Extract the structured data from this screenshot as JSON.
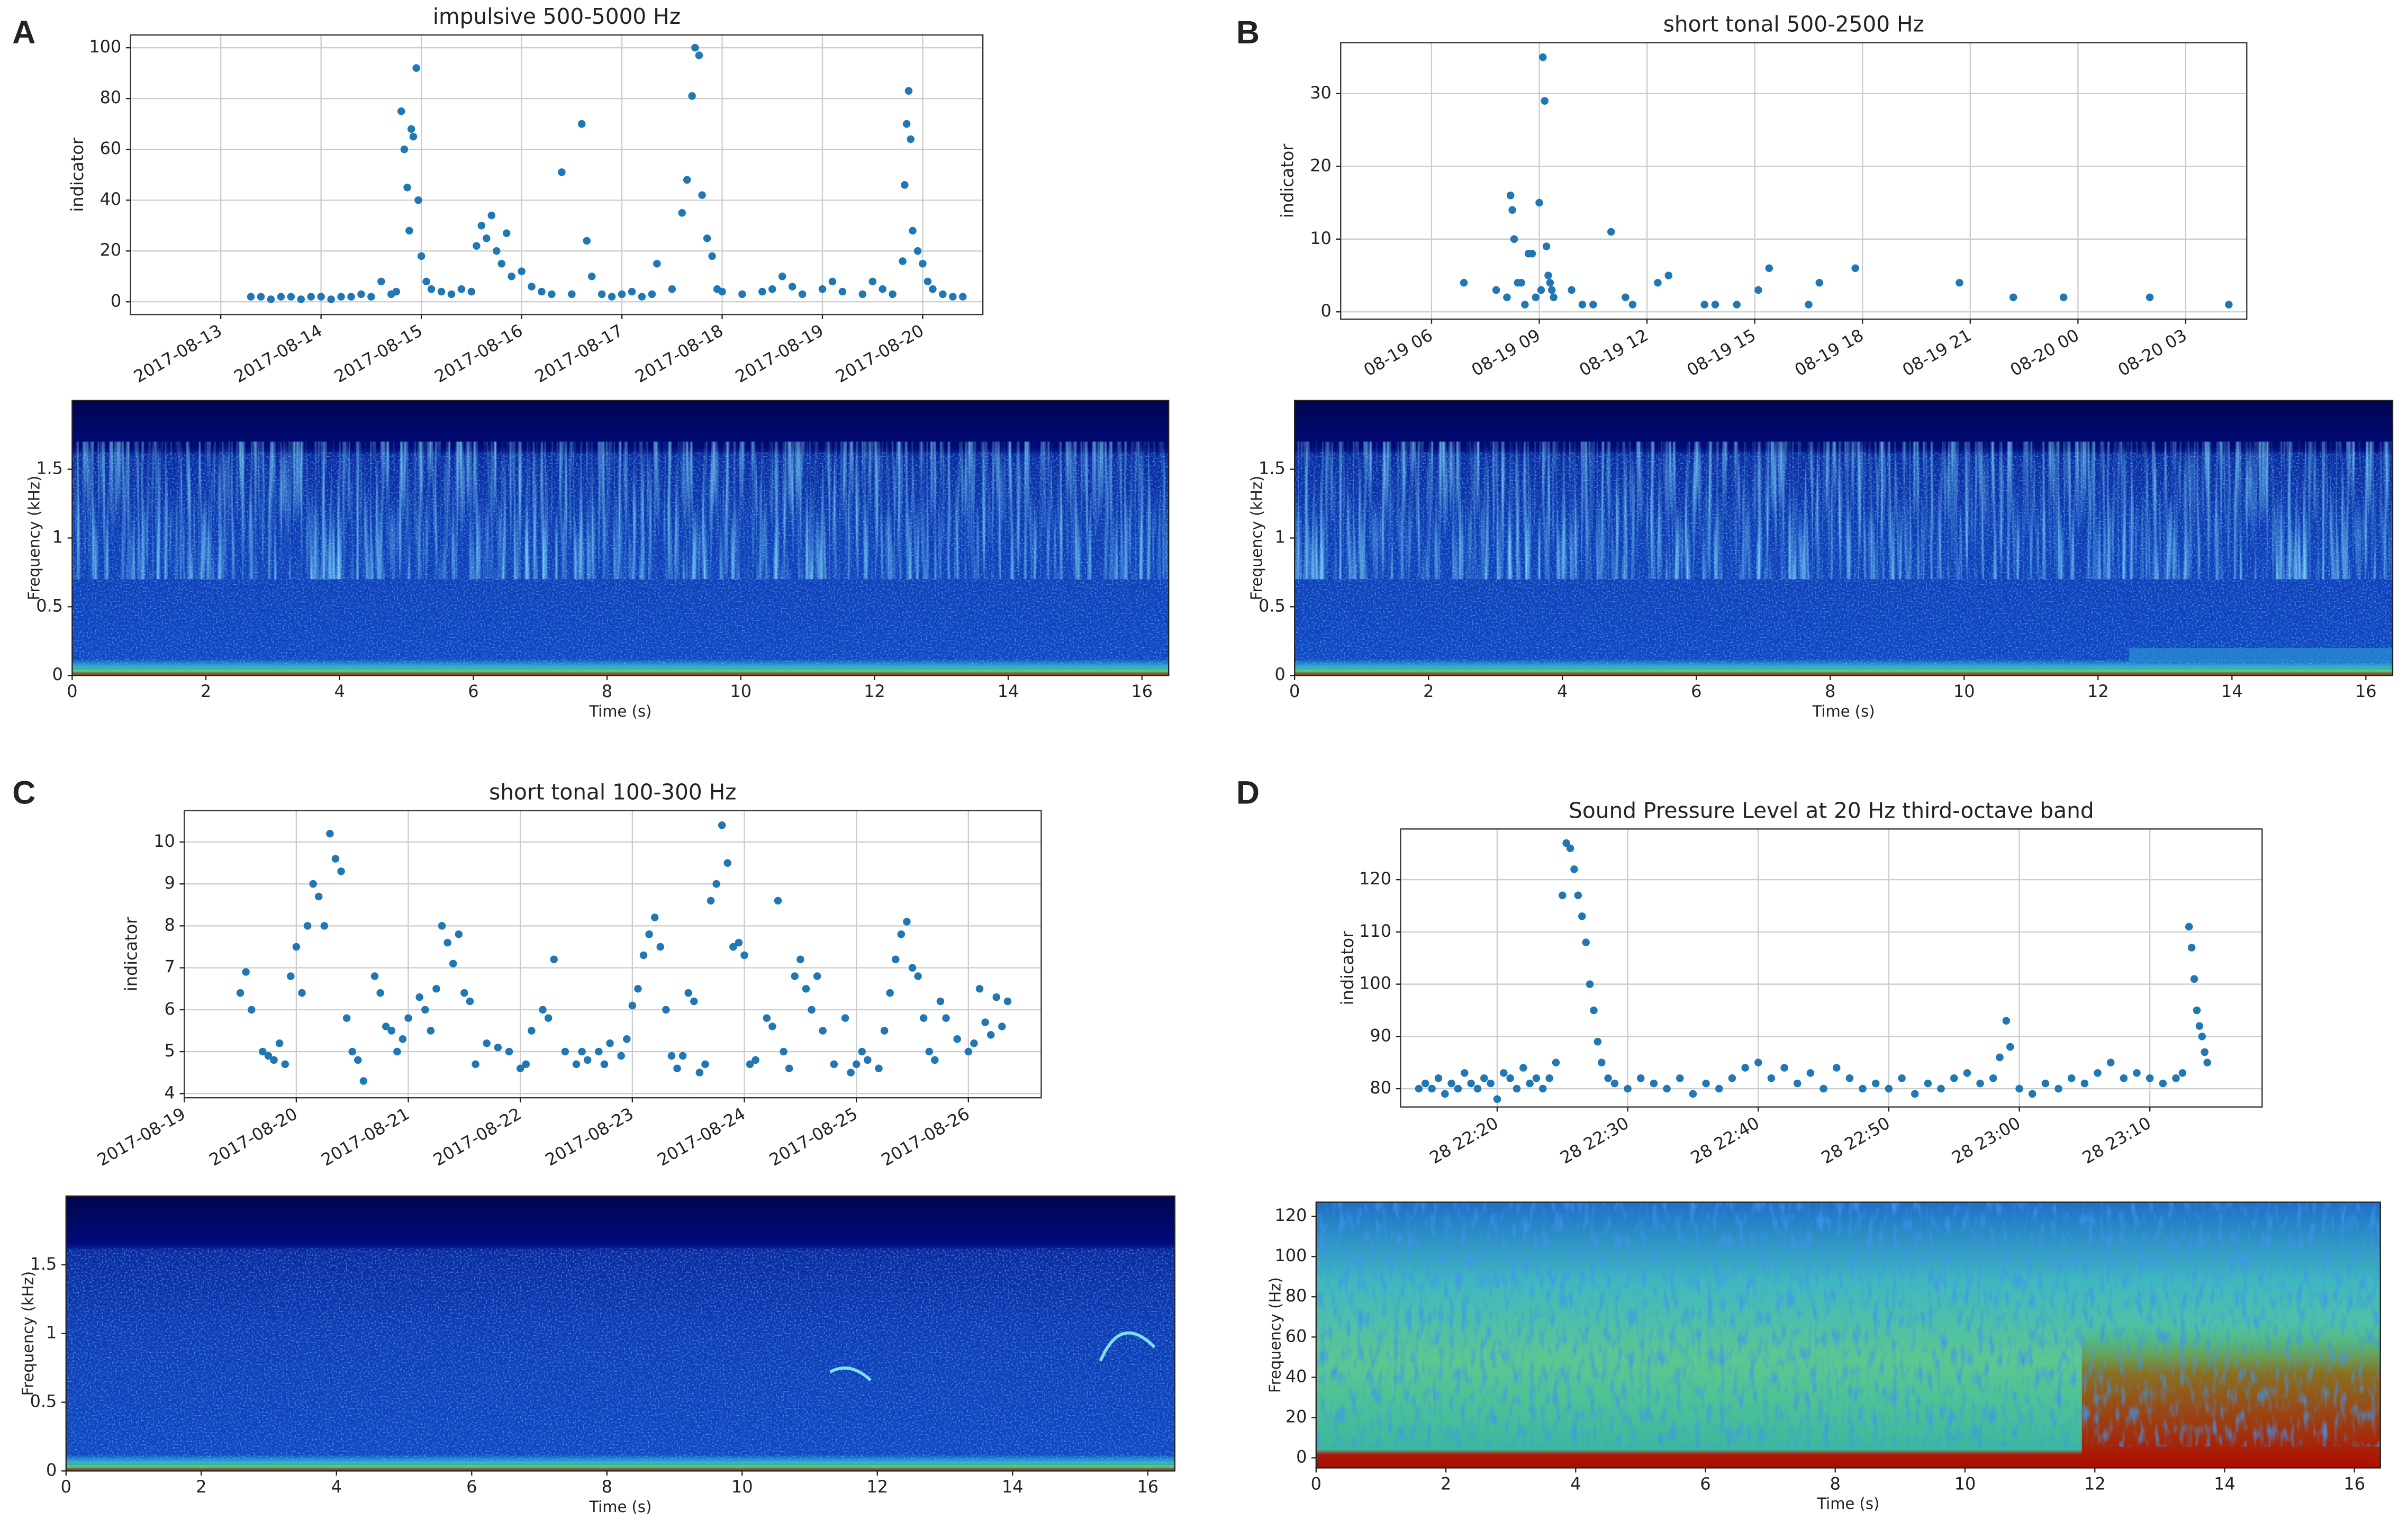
{
  "chart_data": [
    {
      "type": "scatter",
      "panel_label": "A",
      "title": "impulsive 500-5000 Hz",
      "ylabel": "indicator",
      "color": "#1f77b4",
      "grid": true,
      "xlim": [
        12.1,
        20.6
      ],
      "xticks": [
        {
          "value": 13,
          "label": "2017-08-13"
        },
        {
          "value": 14,
          "label": "2017-08-14"
        },
        {
          "value": 15,
          "label": "2017-08-15"
        },
        {
          "value": 16,
          "label": "2017-08-16"
        },
        {
          "value": 17,
          "label": "2017-08-17"
        },
        {
          "value": 18,
          "label": "2017-08-18"
        },
        {
          "value": 19,
          "label": "2017-08-19"
        },
        {
          "value": 20,
          "label": "2017-08-20"
        }
      ],
      "ylim": [
        -5,
        105
      ],
      "yticks": [
        0,
        20,
        40,
        60,
        80,
        100
      ],
      "x": [
        13.3,
        13.4,
        13.5,
        13.6,
        13.7,
        13.8,
        13.9,
        14.0,
        14.1,
        14.2,
        14.3,
        14.4,
        14.5,
        14.6,
        14.7,
        14.75,
        14.8,
        14.83,
        14.86,
        14.88,
        14.9,
        14.92,
        14.95,
        14.97,
        15.0,
        15.05,
        15.1,
        15.2,
        15.3,
        15.4,
        15.5,
        15.55,
        15.6,
        15.65,
        15.7,
        15.75,
        15.8,
        15.85,
        15.9,
        16.0,
        16.1,
        16.2,
        16.3,
        16.4,
        16.5,
        16.6,
        16.65,
        16.7,
        16.8,
        16.9,
        17.0,
        17.1,
        17.2,
        17.3,
        17.35,
        17.5,
        17.6,
        17.65,
        17.7,
        17.73,
        17.77,
        17.8,
        17.85,
        17.9,
        17.95,
        18.0,
        18.2,
        18.4,
        18.5,
        18.6,
        18.7,
        18.8,
        19.0,
        19.1,
        19.2,
        19.4,
        19.5,
        19.6,
        19.7,
        19.8,
        19.82,
        19.84,
        19.86,
        19.88,
        19.9,
        19.95,
        20.0,
        20.05,
        20.1,
        20.2,
        20.3,
        20.4
      ],
      "values": [
        2,
        2,
        1,
        2,
        2,
        1,
        2,
        2,
        1,
        2,
        2,
        3,
        2,
        8,
        3,
        4,
        75,
        60,
        45,
        28,
        68,
        65,
        92,
        40,
        18,
        8,
        5,
        4,
        3,
        5,
        4,
        22,
        30,
        25,
        34,
        20,
        15,
        27,
        10,
        12,
        6,
        4,
        3,
        51,
        3,
        70,
        24,
        10,
        3,
        2,
        3,
        4,
        2,
        3,
        15,
        5,
        35,
        48,
        81,
        100,
        97,
        42,
        25,
        18,
        5,
        4,
        3,
        4,
        5,
        10,
        6,
        3,
        5,
        8,
        4,
        3,
        8,
        5,
        3,
        16,
        46,
        70,
        83,
        64,
        28,
        20,
        15,
        8,
        5,
        3,
        2,
        2
      ]
    },
    {
      "type": "spectrogram",
      "xlabel": "Time (s)",
      "ylabel": "Frequency (kHz)",
      "xlim": [
        0,
        16.4
      ],
      "xticks": [
        0,
        2,
        4,
        6,
        8,
        10,
        12,
        14,
        16
      ],
      "ylim": [
        0,
        2
      ],
      "yticks": [
        0,
        0.5,
        1,
        1.5
      ]
    },
    {
      "type": "scatter",
      "panel_label": "B",
      "title": "short tonal 500-2500 Hz",
      "ylabel": "indicator",
      "color": "#1f77b4",
      "grid": true,
      "xlim": [
        3.47,
        28.7
      ],
      "xticks": [
        {
          "value": 6,
          "label": "08-19 06"
        },
        {
          "value": 9,
          "label": "08-19 09"
        },
        {
          "value": 12,
          "label": "08-19 12"
        },
        {
          "value": 15,
          "label": "08-19 15"
        },
        {
          "value": 18,
          "label": "08-19 18"
        },
        {
          "value": 21,
          "label": "08-19 21"
        },
        {
          "value": 24,
          "label": "08-20 00"
        },
        {
          "value": 27,
          "label": "08-20 03"
        }
      ],
      "ylim": [
        -1,
        37
      ],
      "yticks": [
        0,
        10,
        20,
        30
      ],
      "x": [
        6.9,
        7.8,
        8.1,
        8.2,
        8.25,
        8.3,
        8.4,
        8.5,
        8.6,
        8.7,
        8.8,
        8.9,
        9.0,
        9.05,
        9.1,
        9.15,
        9.2,
        9.25,
        9.3,
        9.35,
        9.4,
        9.9,
        10.2,
        10.5,
        11.0,
        11.4,
        11.6,
        12.3,
        12.6,
        13.6,
        13.9,
        14.5,
        15.1,
        15.4,
        16.5,
        16.8,
        17.8,
        20.7,
        22.2,
        23.6,
        26.0,
        28.2
      ],
      "values": [
        4,
        3,
        2,
        16,
        14,
        10,
        4,
        4,
        1,
        8,
        8,
        2,
        15,
        3,
        35,
        29,
        9,
        5,
        4,
        3,
        2,
        3,
        1,
        1,
        11,
        2,
        1,
        4,
        5,
        1,
        1,
        1,
        3,
        6,
        1,
        4,
        6,
        4,
        2,
        2,
        2,
        1
      ]
    },
    {
      "type": "spectrogram",
      "xlabel": "Time (s)",
      "ylabel": "Frequency (kHz)",
      "xlim": [
        0,
        16.4
      ],
      "xticks": [
        0,
        2,
        4,
        6,
        8,
        10,
        12,
        14,
        16
      ],
      "ylim": [
        0,
        2
      ],
      "yticks": [
        0,
        0.5,
        1,
        1.5
      ]
    },
    {
      "type": "scatter",
      "panel_label": "C",
      "title": "short tonal 100-300 Hz",
      "ylabel": "indicator",
      "color": "#1f77b4",
      "grid": true,
      "xlim": [
        19.0,
        26.65
      ],
      "xticks": [
        {
          "value": 19,
          "label": "2017-08-19"
        },
        {
          "value": 20,
          "label": "2017-08-20"
        },
        {
          "value": 21,
          "label": "2017-08-21"
        },
        {
          "value": 22,
          "label": "2017-08-22"
        },
        {
          "value": 23,
          "label": "2017-08-23"
        },
        {
          "value": 24,
          "label": "2017-08-24"
        },
        {
          "value": 25,
          "label": "2017-08-25"
        },
        {
          "value": 26,
          "label": "2017-08-26"
        }
      ],
      "ylim": [
        3.9,
        10.75
      ],
      "yticks": [
        4,
        5,
        6,
        7,
        8,
        9,
        10
      ],
      "x": [
        19.5,
        19.55,
        19.6,
        19.7,
        19.75,
        19.8,
        19.85,
        19.9,
        19.95,
        20.0,
        20.05,
        20.1,
        20.15,
        20.2,
        20.25,
        20.3,
        20.35,
        20.4,
        20.45,
        20.5,
        20.55,
        20.6,
        20.7,
        20.75,
        20.8,
        20.85,
        20.9,
        20.95,
        21.0,
        21.1,
        21.15,
        21.2,
        21.25,
        21.3,
        21.35,
        21.4,
        21.45,
        21.5,
        21.55,
        21.6,
        21.7,
        21.8,
        21.9,
        22.0,
        22.05,
        22.1,
        22.2,
        22.25,
        22.3,
        22.4,
        22.5,
        22.55,
        22.6,
        22.7,
        22.75,
        22.8,
        22.9,
        22.95,
        23.0,
        23.05,
        23.1,
        23.15,
        23.2,
        23.25,
        23.3,
        23.35,
        23.4,
        23.45,
        23.5,
        23.55,
        23.6,
        23.65,
        23.7,
        23.75,
        23.8,
        23.85,
        23.9,
        23.95,
        24.0,
        24.05,
        24.1,
        24.2,
        24.25,
        24.3,
        24.35,
        24.4,
        24.45,
        24.5,
        24.55,
        24.6,
        24.65,
        24.7,
        24.8,
        24.9,
        24.95,
        25.0,
        25.05,
        25.1,
        25.2,
        25.25,
        25.3,
        25.35,
        25.4,
        25.45,
        25.5,
        25.55,
        25.6,
        25.65,
        25.7,
        25.75,
        25.8,
        25.9,
        26.0,
        26.05,
        26.1,
        26.15,
        26.2,
        26.25,
        26.3,
        26.35
      ],
      "values": [
        6.4,
        6.9,
        6.0,
        5.0,
        4.9,
        4.8,
        5.2,
        4.7,
        6.8,
        7.5,
        6.4,
        8.0,
        9.0,
        8.7,
        8.0,
        10.2,
        9.6,
        9.3,
        5.8,
        5.0,
        4.8,
        4.3,
        6.8,
        6.4,
        5.6,
        5.5,
        5.0,
        5.3,
        5.8,
        6.3,
        6.0,
        5.5,
        6.5,
        8.0,
        7.6,
        7.1,
        7.8,
        6.4,
        6.2,
        4.7,
        5.2,
        5.1,
        5.0,
        4.6,
        4.7,
        5.5,
        6.0,
        5.8,
        7.2,
        5.0,
        4.7,
        5.0,
        4.8,
        5.0,
        4.7,
        5.2,
        4.9,
        5.3,
        6.1,
        6.5,
        7.3,
        7.8,
        8.2,
        7.5,
        6.0,
        4.9,
        4.6,
        4.9,
        6.4,
        6.2,
        4.5,
        4.7,
        8.6,
        9.0,
        10.4,
        9.5,
        7.5,
        7.6,
        7.3,
        4.7,
        4.8,
        5.8,
        5.6,
        8.6,
        5.0,
        4.6,
        6.8,
        7.2,
        6.5,
        6.0,
        6.8,
        5.5,
        4.7,
        5.8,
        4.5,
        4.7,
        5.0,
        4.8,
        4.6,
        5.5,
        6.4,
        7.2,
        7.8,
        8.1,
        7.0,
        6.8,
        5.8,
        5.0,
        4.8,
        6.2,
        5.8,
        5.3,
        5.0,
        5.2,
        6.5,
        5.7,
        5.4,
        6.3,
        5.6,
        6.2
      ]
    },
    {
      "type": "spectrogram",
      "xlabel": "Time (s)",
      "ylabel": "Frequency (kHz)",
      "xlim": [
        0,
        16.4
      ],
      "xticks": [
        0,
        2,
        4,
        6,
        8,
        10,
        12,
        14,
        16
      ],
      "ylim": [
        0,
        2
      ],
      "yticks": [
        0,
        0.5,
        1,
        1.5
      ]
    },
    {
      "type": "scatter",
      "panel_label": "D",
      "title": "Sound Pressure Level at 20 Hz third-octave band",
      "ylabel": "indicator",
      "color": "#1f77b4",
      "grid": true,
      "xlim": [
        12.6,
        78.6
      ],
      "xticks": [
        {
          "value": 20,
          "label": "28 22:20"
        },
        {
          "value": 30,
          "label": "28 22:30"
        },
        {
          "value": 40,
          "label": "28 22:40"
        },
        {
          "value": 50,
          "label": "28 22:50"
        },
        {
          "value": 60,
          "label": "28 23:00"
        },
        {
          "value": 70,
          "label": "28 23:10"
        }
      ],
      "ylim": [
        76.5,
        129.7
      ],
      "yticks": [
        80,
        90,
        100,
        110,
        120
      ],
      "x": [
        14,
        14.5,
        15,
        15.5,
        16,
        16.5,
        17,
        17.5,
        18,
        18.5,
        19,
        19.5,
        20,
        20.5,
        21,
        21.5,
        22,
        22.5,
        23,
        23.5,
        24,
        24.5,
        25,
        25.3,
        25.6,
        25.9,
        26.2,
        26.5,
        26.8,
        27.1,
        27.4,
        27.7,
        28,
        28.5,
        29,
        30,
        31,
        32,
        33,
        34,
        35,
        36,
        37,
        38,
        39,
        40,
        41,
        42,
        43,
        44,
        45,
        46,
        47,
        48,
        49,
        50,
        51,
        52,
        53,
        54,
        55,
        56,
        57,
        58,
        58.5,
        59,
        59.3,
        60,
        61,
        62,
        63,
        64,
        65,
        66,
        67,
        68,
        69,
        70,
        71,
        72,
        72.5,
        73,
        73.2,
        73.4,
        73.6,
        73.8,
        74,
        74.2,
        74.4
      ],
      "values": [
        80,
        81,
        80,
        82,
        79,
        81,
        80,
        83,
        81,
        80,
        82,
        81,
        78,
        83,
        82,
        80,
        84,
        81,
        82,
        80,
        82,
        85,
        117,
        127,
        126,
        122,
        117,
        113,
        108,
        100,
        95,
        89,
        85,
        82,
        81,
        80,
        82,
        81,
        80,
        82,
        79,
        81,
        80,
        82,
        84,
        85,
        82,
        84,
        81,
        83,
        80,
        84,
        82,
        80,
        81,
        80,
        82,
        79,
        81,
        80,
        82,
        83,
        81,
        82,
        86,
        93,
        88,
        80,
        79,
        81,
        80,
        82,
        81,
        83,
        85,
        82,
        83,
        82,
        81,
        82,
        83,
        111,
        107,
        101,
        95,
        92,
        90,
        87,
        85
      ]
    },
    {
      "type": "spectrogram",
      "xlabel": "Time (s)",
      "ylabel": "Frequency (Hz)",
      "xlim": [
        0,
        16.4
      ],
      "xticks": [
        0,
        2,
        4,
        6,
        8,
        10,
        12,
        14,
        16
      ],
      "ylim": [
        -5,
        127
      ],
      "yticks": [
        0,
        20,
        40,
        60,
        80,
        100,
        120
      ]
    }
  ]
}
